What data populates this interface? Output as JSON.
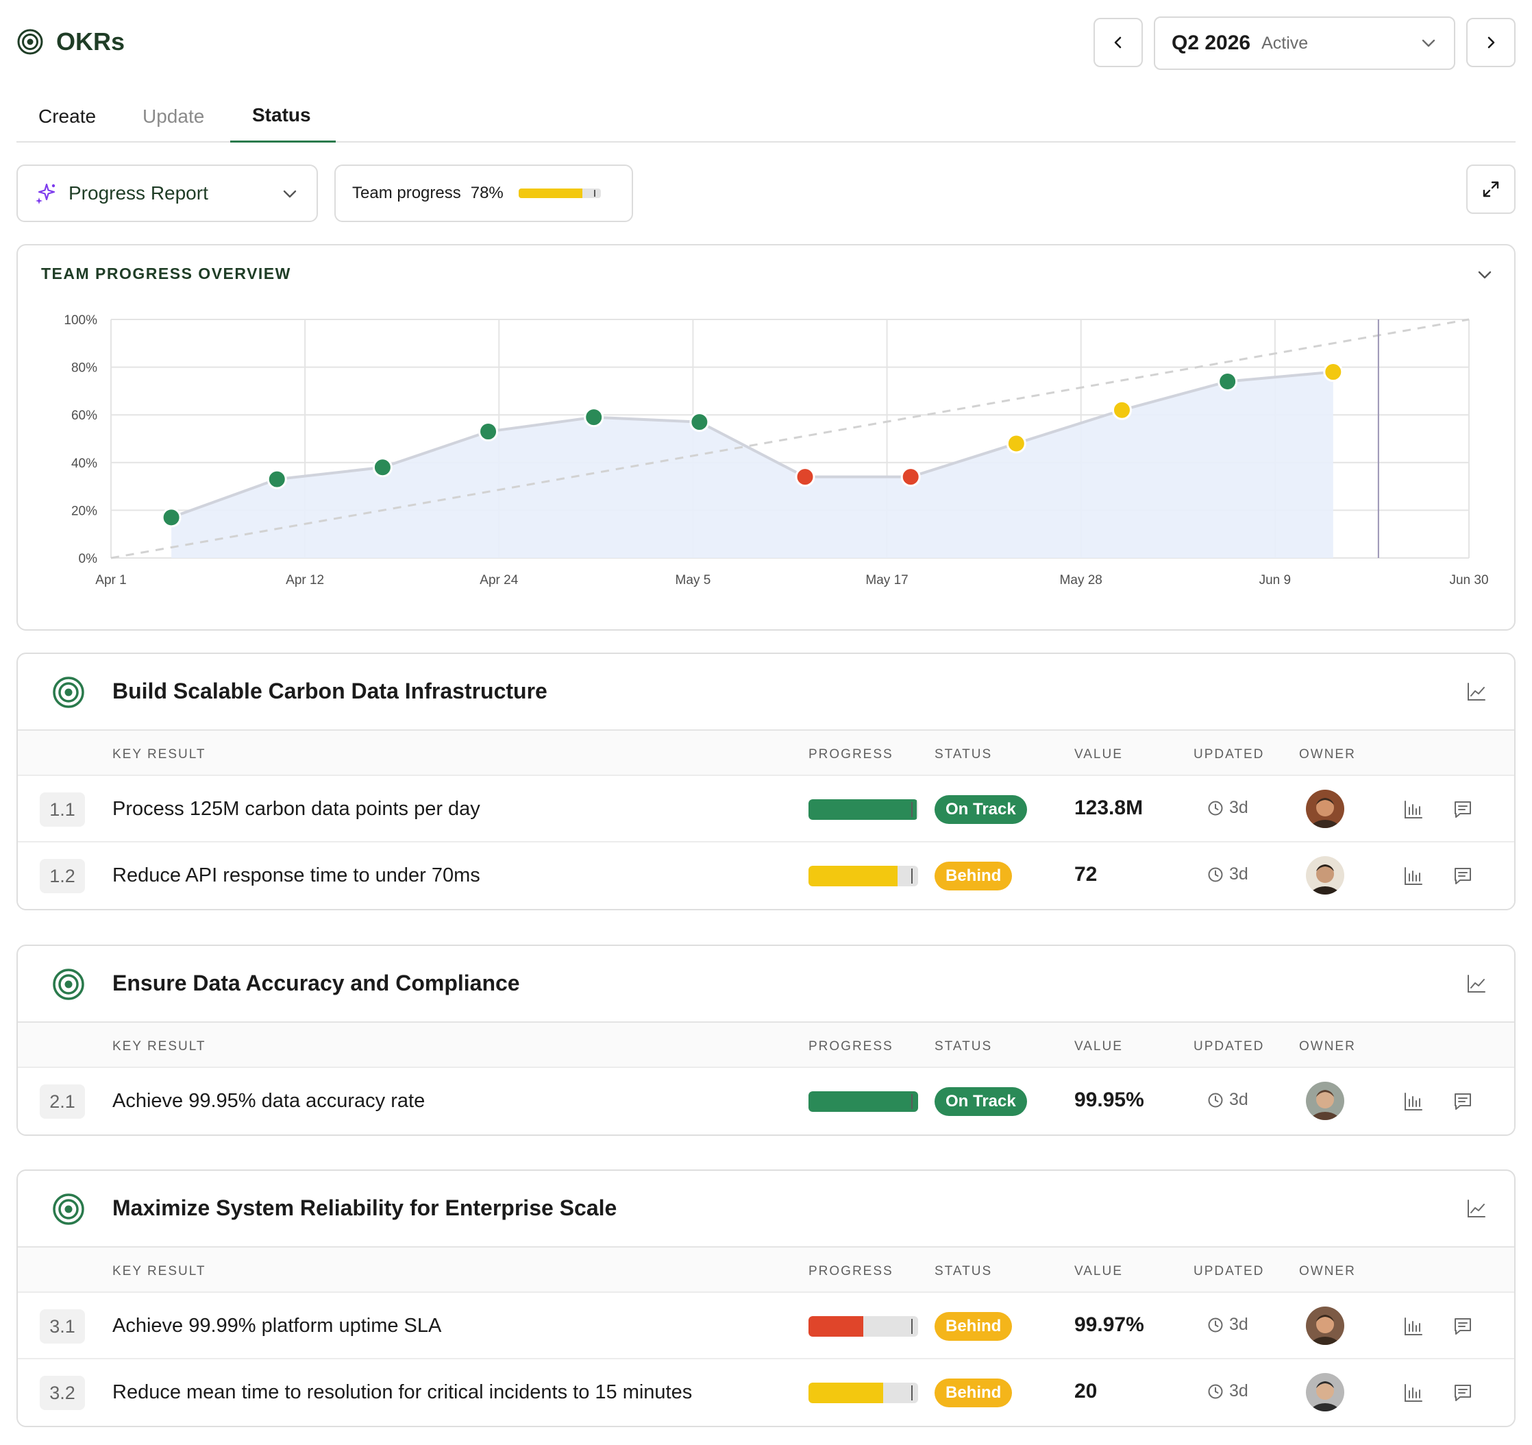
{
  "app": {
    "title": "OKRs"
  },
  "period": {
    "label": "Q2 2026",
    "state": "Active"
  },
  "tabs": {
    "create": "Create",
    "update": "Update",
    "status": "Status",
    "active": "Status"
  },
  "toolbar": {
    "report_label": "Progress Report",
    "team_progress_label": "Team progress",
    "team_progress_value": "78%",
    "team_progress_fraction": 0.78
  },
  "colors": {
    "brand": "#1f3d26",
    "on_track": "#2a8a57",
    "behind": "#f4b51a",
    "off_track": "#e0452a",
    "area_fill": "#e8eefb"
  },
  "chart": {
    "title": "TEAM PROGRESS OVERVIEW",
    "chart_data": {
      "type": "line",
      "title": "TEAM PROGRESS OVERVIEW",
      "xlabel": "",
      "ylabel": "",
      "y_ticks": [
        "0%",
        "20%",
        "40%",
        "60%",
        "80%",
        "100%"
      ],
      "ylim": [
        0,
        100
      ],
      "x_ticks": [
        "Apr 1",
        "Apr 12",
        "Apr 24",
        "May 5",
        "May 17",
        "May 28",
        "Jun 9",
        "Jun 30"
      ],
      "xlim": [
        "2026-04-01",
        "2026-06-30"
      ],
      "grid": true,
      "series": [
        {
          "points": [
            {
              "x": "2026-04-05",
              "y": 17,
              "status": "on_track"
            },
            {
              "x": "2026-04-12",
              "y": 33,
              "status": "on_track"
            },
            {
              "x": "2026-04-19",
              "y": 38,
              "status": "on_track"
            },
            {
              "x": "2026-04-26",
              "y": 53,
              "status": "on_track"
            },
            {
              "x": "2026-05-03",
              "y": 59,
              "status": "on_track"
            },
            {
              "x": "2026-05-10",
              "y": 57,
              "status": "on_track"
            },
            {
              "x": "2026-05-17",
              "y": 34,
              "status": "off_track"
            },
            {
              "x": "2026-05-24",
              "y": 34,
              "status": "off_track"
            },
            {
              "x": "2026-05-31",
              "y": 48,
              "status": "behind"
            },
            {
              "x": "2026-06-07",
              "y": 62,
              "status": "behind"
            },
            {
              "x": "2026-06-14",
              "y": 74,
              "status": "on_track"
            },
            {
              "x": "2026-06-21",
              "y": 78,
              "status": "behind"
            }
          ]
        },
        {
          "style": "dashed",
          "points": [
            {
              "x": "2026-04-01",
              "y": 0
            },
            {
              "x": "2026-06-30",
              "y": 100
            }
          ]
        }
      ],
      "today_marker": "2026-06-24"
    }
  },
  "table_headers": {
    "key_result": "KEY RESULT",
    "progress": "PROGRESS",
    "status": "STATUS",
    "value": "VALUE",
    "updated": "UPDATED",
    "owner": "OWNER"
  },
  "objectives": [
    {
      "title": "Build Scalable Carbon Data Infrastructure",
      "key_results": [
        {
          "num": "1.1",
          "label": "Process 125M carbon data points per day",
          "progress": 0.99,
          "color": "#2a8a57",
          "status": "On Track",
          "status_kind": "on",
          "value": "123.8M",
          "updated": "3d"
        },
        {
          "num": "1.2",
          "label": "Reduce API response time to under 70ms",
          "progress": 0.81,
          "color": "#f3c80f",
          "status": "Behind",
          "status_kind": "behind",
          "value": "72",
          "updated": "3d"
        }
      ]
    },
    {
      "title": "Ensure Data Accuracy and Compliance",
      "key_results": [
        {
          "num": "2.1",
          "label": "Achieve 99.95% data accuracy rate",
          "progress": 1.0,
          "color": "#2a8a57",
          "status": "On Track",
          "status_kind": "on",
          "value": "99.95%",
          "updated": "3d"
        }
      ]
    },
    {
      "title": "Maximize System Reliability for Enterprise Scale",
      "key_results": [
        {
          "num": "3.1",
          "label": "Achieve 99.99% platform uptime SLA",
          "progress": 0.5,
          "color": "#e0452a",
          "status": "Behind",
          "status_kind": "behind",
          "value": "99.97%",
          "updated": "3d"
        },
        {
          "num": "3.2",
          "label": "Reduce mean time to resolution for critical incidents to 15 minutes",
          "progress": 0.68,
          "color": "#f3c80f",
          "status": "Behind",
          "status_kind": "behind",
          "value": "20",
          "updated": "3d"
        }
      ]
    }
  ]
}
